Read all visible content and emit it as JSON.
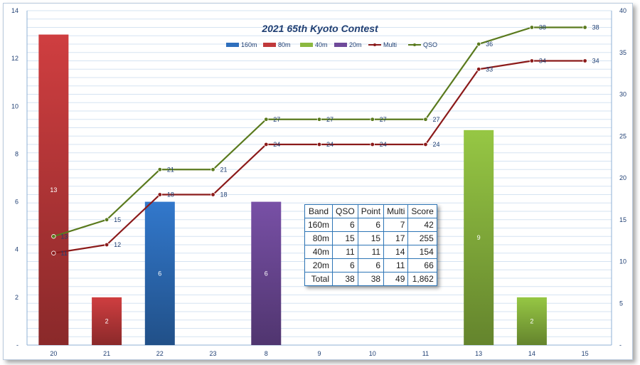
{
  "chart_data": {
    "type": "bar",
    "title": "2021 65th Kyoto Contest",
    "categories": [
      "20",
      "21",
      "22",
      "23",
      "8",
      "9",
      "10",
      "11",
      "13",
      "14",
      "15"
    ],
    "y_left": {
      "min": 0,
      "max": 14,
      "ticks": [
        "-",
        "2",
        "4",
        "6",
        "8",
        "10",
        "12",
        "14"
      ]
    },
    "y_right": {
      "min": 0,
      "max": 40,
      "ticks": [
        "-",
        "5",
        "10",
        "15",
        "20",
        "25",
        "30",
        "35",
        "40"
      ]
    },
    "grid": true,
    "legend_position": "top",
    "bar_series": [
      {
        "name": "160m",
        "color": "#2e6fbd",
        "values": [
          null,
          null,
          6,
          null,
          null,
          null,
          null,
          null,
          null,
          null,
          null
        ]
      },
      {
        "name": "80m",
        "color": "#c0393b",
        "values": [
          13,
          2,
          null,
          null,
          null,
          null,
          null,
          null,
          null,
          null,
          null
        ]
      },
      {
        "name": "40m",
        "color": "#8bb83f",
        "values": [
          null,
          null,
          null,
          null,
          null,
          null,
          null,
          null,
          9,
          2,
          null
        ]
      },
      {
        "name": "20m",
        "color": "#6f4a9a",
        "values": [
          null,
          null,
          null,
          null,
          6,
          null,
          null,
          null,
          null,
          null,
          null
        ]
      }
    ],
    "line_series": [
      {
        "name": "Multi",
        "color": "#8b1a1a",
        "values": [
          11,
          12,
          18,
          18,
          24,
          24,
          24,
          24,
          33,
          34,
          34
        ]
      },
      {
        "name": "QSO",
        "color": "#5a7a1e",
        "values": [
          13,
          15,
          21,
          21,
          27,
          27,
          27,
          27,
          36,
          38,
          38
        ]
      }
    ]
  },
  "score_table": {
    "headers": [
      "Band",
      "QSO",
      "Point",
      "Multi",
      "Score"
    ],
    "rows": [
      [
        "160m",
        "6",
        "6",
        "7",
        "42"
      ],
      [
        "80m",
        "15",
        "15",
        "17",
        "255"
      ],
      [
        "40m",
        "11",
        "11",
        "14",
        "154"
      ],
      [
        "20m",
        "6",
        "6",
        "11",
        "66"
      ],
      [
        "Total",
        "38",
        "38",
        "49",
        "1,862"
      ]
    ]
  }
}
